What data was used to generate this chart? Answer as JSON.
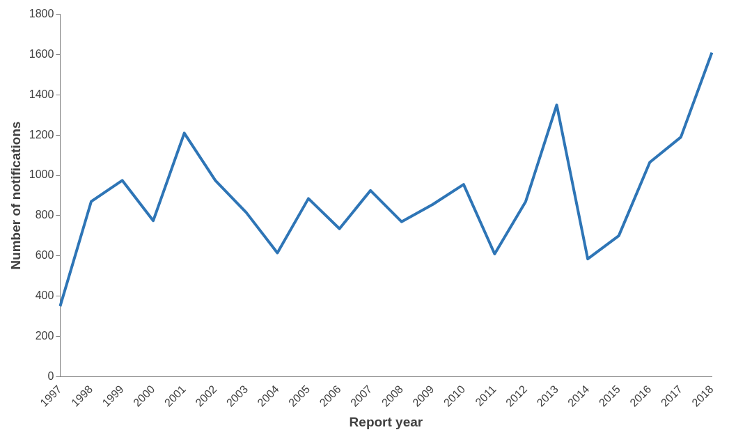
{
  "chart_data": {
    "type": "line",
    "xlabel": "Report year",
    "ylabel": "Number of notifications",
    "categories": [
      "1997",
      "1998",
      "1999",
      "2000",
      "2001",
      "2002",
      "2003",
      "2004",
      "2005",
      "2006",
      "2007",
      "2008",
      "2009",
      "2010",
      "2011",
      "2012",
      "2013",
      "2014",
      "2015",
      "2016",
      "2017",
      "2018"
    ],
    "series": [
      {
        "color": "#2e75b6",
        "values": [
          350,
          870,
          975,
          775,
          1210,
          975,
          815,
          615,
          885,
          735,
          925,
          770,
          855,
          955,
          610,
          870,
          1350,
          585,
          700,
          1065,
          1190,
          1610
        ]
      }
    ],
    "ylim": [
      0,
      1800
    ],
    "yticks": [
      0,
      200,
      400,
      600,
      800,
      1000,
      1200,
      1400,
      1600,
      1800
    ],
    "grid": false,
    "legend": false,
    "marker": "none",
    "line_style": "solid"
  }
}
